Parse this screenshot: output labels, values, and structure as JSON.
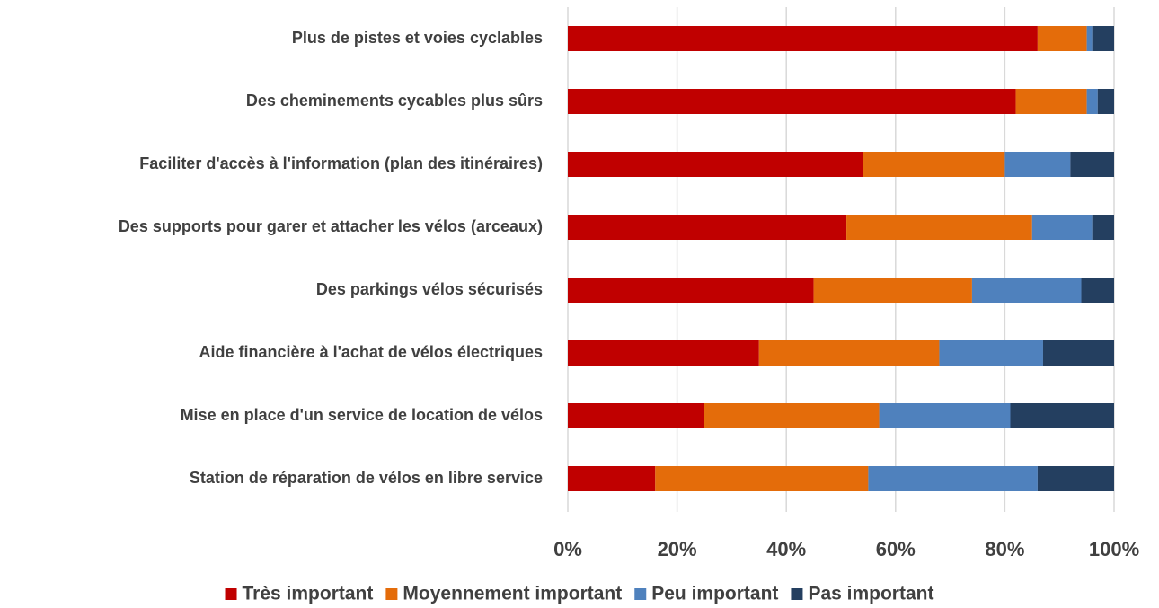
{
  "chart_data": {
    "type": "stacked-bar-horizontal",
    "categories": [
      "Plus de pistes et voies cyclables",
      "Des cheminements cycables plus sûrs",
      "Faciliter d'accès à l'information (plan des itinéraires)",
      "Des supports pour garer et attacher les vélos (arceaux)",
      "Des parkings vélos sécurisés",
      "Aide financière à l'achat de vélos électriques",
      "Mise en place d'un service de location de vélos",
      "Station de réparation de vélos en libre service"
    ],
    "series": [
      {
        "name": "Très important",
        "color": "#c00000",
        "values": [
          86,
          82,
          54,
          51,
          45,
          35,
          25,
          16
        ]
      },
      {
        "name": "Moyennement important",
        "color": "#e46c0a",
        "values": [
          9,
          13,
          26,
          34,
          29,
          33,
          32,
          39
        ]
      },
      {
        "name": "Peu important",
        "color": "#4f81bd",
        "values": [
          1,
          2,
          12,
          11,
          20,
          19,
          24,
          31
        ]
      },
      {
        "name": "Pas important",
        "color": "#243f60",
        "values": [
          4,
          3,
          8,
          4,
          6,
          13,
          19,
          14
        ]
      }
    ],
    "xlim": [
      0,
      100
    ],
    "xticks": [
      {
        "value": 0,
        "label": "0%"
      },
      {
        "value": 20,
        "label": "20%"
      },
      {
        "value": 40,
        "label": "40%"
      },
      {
        "value": 60,
        "label": "60%"
      },
      {
        "value": 80,
        "label": "80%"
      },
      {
        "value": 100,
        "label": "100%"
      }
    ],
    "grid": true,
    "legend": "bottom"
  }
}
